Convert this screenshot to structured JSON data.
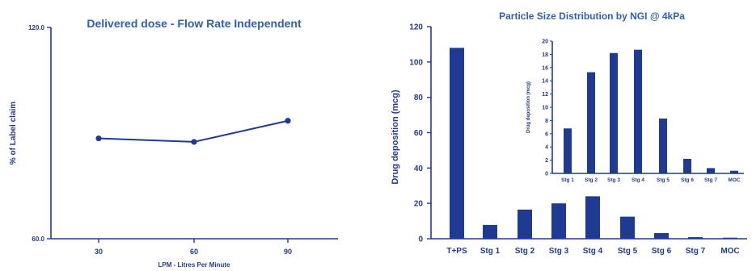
{
  "colors": {
    "navy": "#1f3a93",
    "title": "#2f5fb0",
    "bar": "#1f3a93"
  },
  "chart_data": [
    {
      "type": "line",
      "title": "Delivered dose - Flow Rate Independent",
      "xlabel": "LPM - Litres Per Minute",
      "ylabel": "% of Label claim",
      "ylim": [
        60,
        120
      ],
      "yticks": [
        "120.0",
        "60.0"
      ],
      "categories": [
        "30",
        "60",
        "90"
      ],
      "series": [
        {
          "values": [
            88.5,
            87.5,
            93.5
          ]
        }
      ],
      "grid": false
    },
    {
      "type": "bar",
      "title": "Particle Size Distribution by NGI @ 4kPa",
      "xlabel": "",
      "ylabel": "Drug deposition (mcg)",
      "ylim": [
        0,
        120
      ],
      "yticks": [
        "0",
        "20",
        "40",
        "60",
        "80",
        "100",
        "120"
      ],
      "categories": [
        "T+PS",
        "Stg 1",
        "Stg 2",
        "Stg 3",
        "Stg 4",
        "Stg 5",
        "Stg 6",
        "Stg 7",
        "MOC"
      ],
      "values": [
        108,
        7.8,
        16.5,
        20,
        24,
        12.5,
        3.2,
        0.9,
        0.6
      ],
      "grid": false,
      "inset": {
        "type": "bar",
        "ylabel": "Drug deposition (mcg)",
        "ylim": [
          0,
          20
        ],
        "yticks": [
          "0",
          "2",
          "4",
          "6",
          "8",
          "10",
          "12",
          "14",
          "16",
          "18",
          "20"
        ],
        "categories": [
          "Stg 1",
          "Stg 2",
          "Stg 3",
          "Stg 4",
          "Stg 5",
          "Stg 6",
          "Stg 7",
          "MOC"
        ],
        "values": [
          6.8,
          15.3,
          18.2,
          18.7,
          8.3,
          2.2,
          0.8,
          0.4
        ]
      }
    }
  ]
}
